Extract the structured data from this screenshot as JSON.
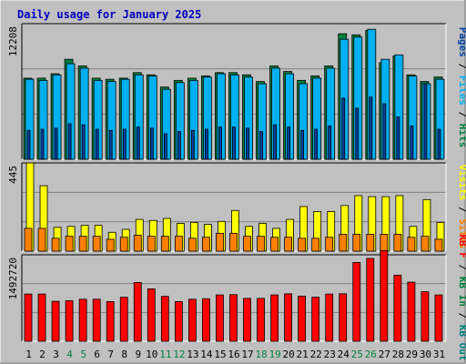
{
  "chart_data": [
    {
      "type": "bar",
      "title": "Daily usage for January 2025",
      "categories": [
        "1",
        "2",
        "3",
        "4",
        "5",
        "6",
        "7",
        "8",
        "9",
        "10",
        "11",
        "12",
        "13",
        "14",
        "15",
        "16",
        "17",
        "18",
        "19",
        "20",
        "21",
        "22",
        "23",
        "24",
        "25",
        "26",
        "27",
        "28",
        "29",
        "30",
        "31"
      ],
      "weekend_days": [
        "4",
        "5",
        "11",
        "12",
        "18",
        "19",
        "25",
        "26"
      ],
      "ylim": [
        0,
        12208
      ],
      "y_tick_label": "12208",
      "legend": [
        "Pages",
        "/",
        "Files",
        "/",
        "Hits"
      ],
      "series": [
        {
          "name": "Hits",
          "color": "#008040",
          "values": [
            7300,
            7300,
            7700,
            9000,
            8400,
            7300,
            7200,
            7300,
            7800,
            7600,
            6500,
            7100,
            7300,
            7500,
            7800,
            7800,
            7600,
            7000,
            8400,
            7900,
            7100,
            7500,
            8400,
            11300,
            11200,
            11600,
            8700,
            9300,
            7600,
            7000,
            7400
          ]
        },
        {
          "name": "Files",
          "color": "#00b0f0",
          "values": [
            7200,
            7100,
            7600,
            8600,
            8200,
            7100,
            7000,
            7200,
            7600,
            7500,
            6300,
            6900,
            7100,
            7400,
            7700,
            7600,
            7400,
            6800,
            8200,
            7700,
            6800,
            7300,
            8200,
            10800,
            11000,
            11700,
            9000,
            9400,
            7500,
            6800,
            7200
          ]
        },
        {
          "name": "Pages",
          "color": "#0040a0",
          "values": [
            2600,
            2700,
            2800,
            3200,
            3100,
            2700,
            2600,
            2700,
            2900,
            2800,
            2300,
            2500,
            2600,
            2700,
            2900,
            2900,
            2800,
            2500,
            3100,
            2900,
            2600,
            2700,
            3000,
            5500,
            4600,
            5600,
            5000,
            3800,
            3000,
            6800,
            2700
          ]
        }
      ]
    },
    {
      "type": "bar",
      "categories": [
        "1",
        "2",
        "3",
        "4",
        "5",
        "6",
        "7",
        "8",
        "9",
        "10",
        "11",
        "12",
        "13",
        "14",
        "15",
        "16",
        "17",
        "18",
        "19",
        "20",
        "21",
        "22",
        "23",
        "24",
        "25",
        "26",
        "27",
        "28",
        "29",
        "30",
        "31"
      ],
      "ylim": [
        0,
        445
      ],
      "y_tick_label": "445",
      "legend": [
        "Visits",
        "/",
        "Sites"
      ],
      "series": [
        {
          "name": "Visits",
          "color": "#ffff00",
          "values": [
            445,
            330,
            120,
            125,
            130,
            130,
            95,
            110,
            160,
            155,
            165,
            140,
            145,
            135,
            150,
            205,
            125,
            140,
            115,
            160,
            225,
            200,
            200,
            230,
            280,
            275,
            275,
            280,
            125,
            260,
            145
          ]
        },
        {
          "name": "Sites",
          "color": "#ff8000",
          "values": [
            115,
            115,
            65,
            75,
            75,
            75,
            60,
            70,
            80,
            75,
            75,
            75,
            65,
            70,
            90,
            90,
            75,
            75,
            70,
            70,
            65,
            65,
            70,
            85,
            85,
            85,
            85,
            85,
            70,
            75,
            60
          ]
        }
      ]
    },
    {
      "type": "bar",
      "categories": [
        "1",
        "2",
        "3",
        "4",
        "5",
        "6",
        "7",
        "8",
        "9",
        "10",
        "11",
        "12",
        "13",
        "14",
        "15",
        "16",
        "17",
        "18",
        "19",
        "20",
        "21",
        "22",
        "23",
        "24",
        "25",
        "26",
        "27",
        "28",
        "29",
        "30",
        "31"
      ],
      "ylim": [
        0,
        1492720
      ],
      "y_tick_label": "1492720",
      "legend": [
        "KB F",
        "/",
        "KB In",
        "/",
        "KB Out"
      ],
      "series": [
        {
          "name": "KB F",
          "color": "#ff0000",
          "values": [
            815000,
            815000,
            690000,
            700000,
            725000,
            725000,
            685000,
            760000,
            1015000,
            905000,
            775000,
            685000,
            725000,
            735000,
            800000,
            805000,
            740000,
            740000,
            800000,
            820000,
            780000,
            760000,
            815000,
            820000,
            1360000,
            1430000,
            1565000,
            1140000,
            1020000,
            855000,
            800000
          ]
        },
        {
          "name": "KB In",
          "color": "#008040",
          "values": [
            0,
            0,
            0,
            0,
            0,
            0,
            0,
            0,
            0,
            0,
            0,
            0,
            0,
            0,
            0,
            0,
            0,
            0,
            0,
            0,
            0,
            0,
            0,
            0,
            0,
            0,
            0,
            0,
            0,
            0,
            0
          ]
        },
        {
          "name": "KB Out",
          "color": "#008080",
          "values": [
            0,
            0,
            0,
            0,
            0,
            0,
            0,
            0,
            0,
            0,
            0,
            0,
            0,
            0,
            0,
            0,
            0,
            0,
            0,
            0,
            0,
            0,
            0,
            0,
            0,
            0,
            0,
            0,
            0,
            0,
            0
          ]
        }
      ]
    }
  ]
}
